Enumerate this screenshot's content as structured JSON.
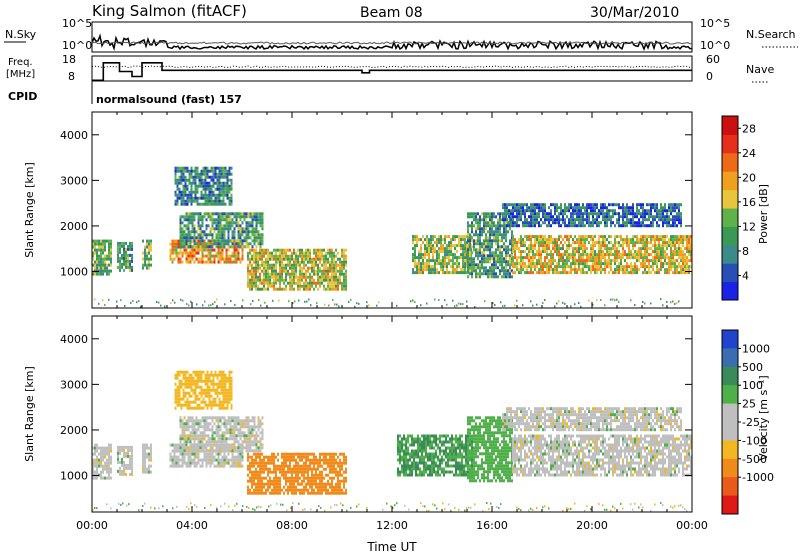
{
  "header": {
    "station": "King Salmon (fitACF)",
    "beam": "Beam 08",
    "date": "30/Mar/2010"
  },
  "summary": {
    "nsky_label": "N.Sky",
    "nsky_ticks": [
      "10^5",
      "10^0"
    ],
    "nsearch_label": "N.Search",
    "nsearch_ticks": [
      "10^5",
      "10^0"
    ],
    "freq_label_1": "Freq.",
    "freq_label_2": "[MHz]",
    "freq_ticks": [
      "18",
      "8"
    ],
    "nave_label": "Nave",
    "nave_ticks": [
      "60",
      "0"
    ],
    "cpid_label": "CPID",
    "cpid_value": "normalsound (fast) 157"
  },
  "colors": {
    "power_scale": [
      "#1a22e6",
      "#274fb5",
      "#3d8a8a",
      "#3a9a55",
      "#5fb24a",
      "#e8c53a",
      "#f0a020",
      "#ef6a18",
      "#e6301c",
      "#cc1010"
    ],
    "velocity_scale": [
      "#2244cc",
      "#3a6eb0",
      "#3a8a5a",
      "#4fb04a",
      "#bfbfbf",
      "#bfbfbf",
      "#f2b824",
      "#f08a1a",
      "#ea5a1a",
      "#e01818"
    ],
    "ground_gray": "#b9b9b9"
  },
  "chart_data": [
    {
      "type": "heatmap",
      "title": "",
      "xlabel": "",
      "ylabel": "Slant Range [km]",
      "xlim": [
        "00:00",
        "00:00"
      ],
      "ylim": [
        200,
        4500
      ],
      "yticks": [
        1000,
        2000,
        3000,
        4000
      ],
      "colorbar": {
        "label": "Power [dB]",
        "ticks": [
          4,
          8,
          12,
          16,
          20,
          24,
          28
        ],
        "range": [
          0,
          30
        ]
      },
      "regions": [
        {
          "t": [
            0.0,
            0.8
          ],
          "r": [
            950,
            1700
          ],
          "v": 12
        },
        {
          "t": [
            1.0,
            1.6
          ],
          "r": [
            1050,
            1650
          ],
          "v": 10
        },
        {
          "t": [
            2.0,
            2.4
          ],
          "r": [
            1100,
            1700
          ],
          "v": 12
        },
        {
          "t": [
            3.1,
            6.0
          ],
          "r": [
            1200,
            1700
          ],
          "v": 20
        },
        {
          "t": [
            3.5,
            6.8
          ],
          "r": [
            1550,
            2300
          ],
          "v": 10
        },
        {
          "t": [
            3.3,
            5.6
          ],
          "r": [
            2500,
            3300
          ],
          "v": 8
        },
        {
          "t": [
            6.2,
            10.2
          ],
          "r": [
            600,
            1500
          ],
          "v": 16
        },
        {
          "t": [
            12.8,
            15.2
          ],
          "r": [
            1000,
            1800
          ],
          "v": 14
        },
        {
          "t": [
            15.0,
            16.8
          ],
          "r": [
            900,
            2300
          ],
          "v": 10
        },
        {
          "t": [
            16.8,
            24.0
          ],
          "r": [
            1000,
            1800
          ],
          "v": 17
        },
        {
          "t": [
            16.4,
            23.6
          ],
          "r": [
            2000,
            2500
          ],
          "v": 6
        }
      ]
    },
    {
      "type": "heatmap",
      "title": "",
      "xlabel": "Time UT",
      "ylabel": "Slant Range [km]",
      "xlim": [
        "00:00",
        "00:00"
      ],
      "xticks": [
        "00:00",
        "04:00",
        "08:00",
        "12:00",
        "16:00",
        "20:00",
        "00:00"
      ],
      "ylim": [
        200,
        4500
      ],
      "yticks": [
        1000,
        2000,
        3000,
        4000
      ],
      "colorbar": {
        "label": "Velocity [m s⁻¹]",
        "ticks": [
          1000,
          500,
          100,
          25,
          -25,
          -100,
          -500,
          -1000
        ]
      },
      "regions": [
        {
          "t": [
            0.0,
            0.8
          ],
          "r": [
            950,
            1700
          ],
          "v": 0
        },
        {
          "t": [
            1.0,
            1.6
          ],
          "r": [
            1050,
            1650
          ],
          "v": 0
        },
        {
          "t": [
            2.0,
            2.4
          ],
          "r": [
            1100,
            1700
          ],
          "v": 0
        },
        {
          "t": [
            3.1,
            6.0
          ],
          "r": [
            1200,
            1700
          ],
          "v": 0
        },
        {
          "t": [
            3.5,
            6.8
          ],
          "r": [
            1550,
            2300
          ],
          "v": 0
        },
        {
          "t": [
            3.3,
            5.6
          ],
          "r": [
            2500,
            3300
          ],
          "v": -60
        },
        {
          "t": [
            6.2,
            10.2
          ],
          "r": [
            600,
            1500
          ],
          "v": -150
        },
        {
          "t": [
            12.2,
            15.2
          ],
          "r": [
            1000,
            1900
          ],
          "v": 100
        },
        {
          "t": [
            15.0,
            16.8
          ],
          "r": [
            900,
            2300
          ],
          "v": 60
        },
        {
          "t": [
            16.8,
            24.0
          ],
          "r": [
            1000,
            1900
          ],
          "v": 0
        },
        {
          "t": [
            16.4,
            23.6
          ],
          "r": [
            2000,
            2500
          ],
          "v": 0
        }
      ]
    }
  ]
}
